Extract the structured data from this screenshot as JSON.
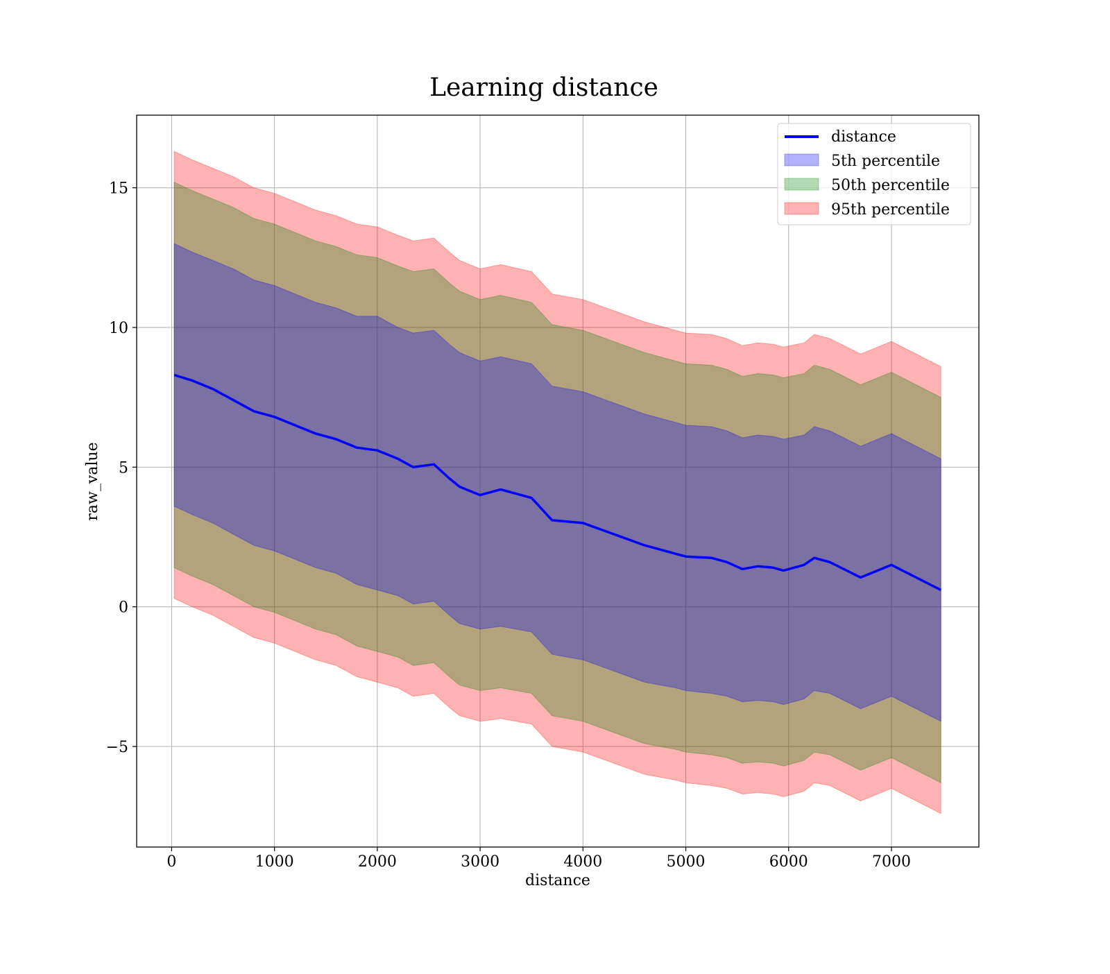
{
  "chart_data": {
    "type": "line",
    "title": "Learning distance",
    "xlabel": "distance",
    "ylabel": "raw_value",
    "xlim": [
      -340,
      7850
    ],
    "ylim": [
      -8.6,
      17.6
    ],
    "xticks": [
      0,
      1000,
      2000,
      3000,
      4000,
      5000,
      6000,
      7000
    ],
    "yticks": [
      -5,
      0,
      5,
      10,
      15
    ],
    "ytick_labels": [
      "−5",
      "0",
      "5",
      "10",
      "15"
    ],
    "grid": true,
    "legend_position": "top-right",
    "legend": [
      "distance",
      "5th percentile",
      "50th percentile",
      "95th percentile"
    ],
    "x": [
      25,
      200,
      400,
      600,
      800,
      1000,
      1200,
      1400,
      1600,
      1800,
      2000,
      2200,
      2350,
      2550,
      2700,
      2800,
      3000,
      3200,
      3500,
      3700,
      4000,
      4300,
      4600,
      4900,
      5000,
      5250,
      5400,
      5550,
      5700,
      5850,
      5950,
      6150,
      6250,
      6400,
      6700,
      7000,
      7480
    ],
    "series": [
      {
        "name": "distance",
        "kind": "line",
        "color": "#0000ff",
        "y": [
          8.3,
          8.1,
          7.8,
          7.4,
          7.0,
          6.8,
          6.5,
          6.2,
          6.0,
          5.7,
          5.6,
          5.3,
          5.0,
          5.1,
          4.6,
          4.3,
          4.0,
          4.2,
          3.9,
          3.1,
          3.0,
          2.6,
          2.2,
          1.9,
          1.8,
          1.75,
          1.6,
          1.35,
          1.45,
          1.4,
          1.3,
          1.5,
          1.75,
          1.6,
          1.05,
          1.5,
          0.6
        ]
      },
      {
        "name": "5th percentile",
        "kind": "band",
        "color": "#0000ff",
        "opacity": 0.3,
        "lower": [
          3.6,
          3.3,
          3.0,
          2.6,
          2.2,
          2.0,
          1.7,
          1.4,
          1.2,
          0.8,
          0.6,
          0.4,
          0.1,
          0.2,
          -0.3,
          -0.6,
          -0.8,
          -0.7,
          -0.9,
          -1.7,
          -1.9,
          -2.3,
          -2.7,
          -2.9,
          -3.0,
          -3.1,
          -3.2,
          -3.4,
          -3.35,
          -3.4,
          -3.5,
          -3.3,
          -3.0,
          -3.1,
          -3.65,
          -3.2,
          -4.1
        ],
        "upper": [
          13.0,
          12.7,
          12.4,
          12.1,
          11.7,
          11.5,
          11.2,
          10.9,
          10.7,
          10.4,
          10.4,
          10.0,
          9.8,
          9.9,
          9.4,
          9.1,
          8.8,
          8.95,
          8.7,
          7.9,
          7.7,
          7.3,
          6.9,
          6.6,
          6.5,
          6.45,
          6.3,
          6.05,
          6.15,
          6.1,
          6.0,
          6.15,
          6.45,
          6.3,
          5.75,
          6.2,
          5.3
        ]
      },
      {
        "name": "50th percentile",
        "kind": "band",
        "color": "#008000",
        "opacity": 0.3,
        "lower": [
          1.4,
          1.1,
          0.8,
          0.4,
          0.0,
          -0.2,
          -0.5,
          -0.8,
          -1.0,
          -1.4,
          -1.6,
          -1.8,
          -2.1,
          -2.0,
          -2.5,
          -2.8,
          -3.0,
          -2.9,
          -3.1,
          -3.9,
          -4.1,
          -4.5,
          -4.9,
          -5.1,
          -5.2,
          -5.3,
          -5.4,
          -5.6,
          -5.55,
          -5.6,
          -5.7,
          -5.5,
          -5.2,
          -5.3,
          -5.85,
          -5.4,
          -6.3
        ],
        "upper": [
          15.2,
          14.9,
          14.6,
          14.3,
          13.9,
          13.7,
          13.4,
          13.1,
          12.9,
          12.6,
          12.5,
          12.2,
          12.0,
          12.1,
          11.6,
          11.3,
          11.0,
          11.15,
          10.9,
          10.1,
          9.9,
          9.5,
          9.1,
          8.8,
          8.7,
          8.65,
          8.5,
          8.25,
          8.35,
          8.3,
          8.2,
          8.35,
          8.65,
          8.5,
          7.95,
          8.4,
          7.5
        ]
      },
      {
        "name": "95th percentile",
        "kind": "band",
        "color": "#ff0000",
        "opacity": 0.3,
        "lower": [
          0.3,
          0.0,
          -0.3,
          -0.7,
          -1.1,
          -1.3,
          -1.6,
          -1.9,
          -2.1,
          -2.5,
          -2.7,
          -2.9,
          -3.2,
          -3.1,
          -3.6,
          -3.9,
          -4.1,
          -4.0,
          -4.2,
          -5.0,
          -5.2,
          -5.6,
          -6.0,
          -6.2,
          -6.3,
          -6.4,
          -6.5,
          -6.7,
          -6.65,
          -6.7,
          -6.8,
          -6.6,
          -6.3,
          -6.4,
          -6.95,
          -6.5,
          -7.4
        ],
        "upper": [
          16.3,
          16.0,
          15.7,
          15.4,
          15.0,
          14.8,
          14.5,
          14.2,
          14.0,
          13.7,
          13.6,
          13.3,
          13.1,
          13.2,
          12.7,
          12.4,
          12.1,
          12.25,
          12.0,
          11.2,
          11.0,
          10.6,
          10.2,
          9.9,
          9.8,
          9.75,
          9.6,
          9.35,
          9.45,
          9.4,
          9.3,
          9.45,
          9.75,
          9.6,
          9.05,
          9.5,
          8.6
        ]
      }
    ]
  }
}
